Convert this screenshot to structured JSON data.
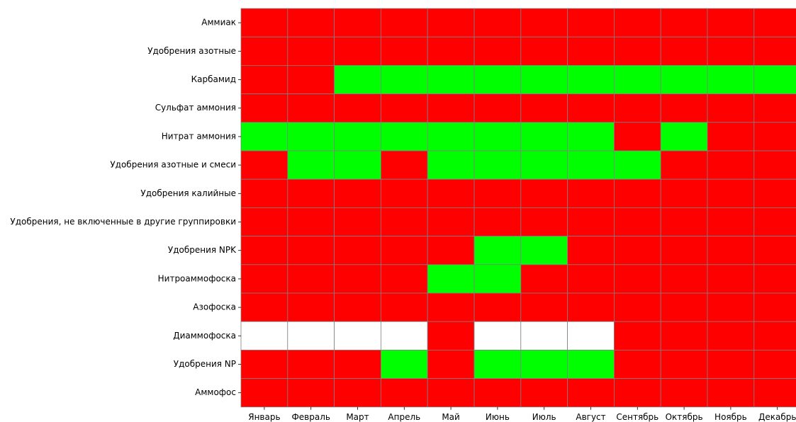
{
  "chart_data": {
    "type": "heatmap",
    "title": "",
    "xlabel": "",
    "ylabel": "",
    "columns": [
      "Январь",
      "Февраль",
      "Март",
      "Апрель",
      "Май",
      "Июнь",
      "Июль",
      "Август",
      "Сентябрь",
      "Октябрь",
      "Ноябрь",
      "Декабрь"
    ],
    "rows": [
      "Аммиак",
      "Удобрения азотные",
      "Карбамид",
      "Сульфат аммония",
      "Нитрат аммония",
      "Удобрения азотные и смеси",
      "Удобрения калийные",
      "Удобрения, не включенные в другие группировки",
      "Удобрения NPK",
      "Нитроаммофоска",
      "Азофоска",
      "Диаммофоска",
      "Удобрения NP",
      "Аммофос"
    ],
    "cells": [
      [
        "red",
        "red",
        "red",
        "red",
        "red",
        "red",
        "red",
        "red",
        "red",
        "red",
        "red",
        "red"
      ],
      [
        "red",
        "red",
        "red",
        "red",
        "red",
        "red",
        "red",
        "red",
        "red",
        "red",
        "red",
        "red"
      ],
      [
        "red",
        "red",
        "green",
        "green",
        "green",
        "green",
        "green",
        "green",
        "green",
        "green",
        "green",
        "green"
      ],
      [
        "red",
        "red",
        "red",
        "red",
        "red",
        "red",
        "red",
        "red",
        "red",
        "red",
        "red",
        "red"
      ],
      [
        "green",
        "green",
        "green",
        "green",
        "green",
        "green",
        "green",
        "green",
        "red",
        "green",
        "red",
        "red"
      ],
      [
        "red",
        "green",
        "green",
        "red",
        "green",
        "green",
        "green",
        "green",
        "green",
        "red",
        "red",
        "red"
      ],
      [
        "red",
        "red",
        "red",
        "red",
        "red",
        "red",
        "red",
        "red",
        "red",
        "red",
        "red",
        "red"
      ],
      [
        "red",
        "red",
        "red",
        "red",
        "red",
        "red",
        "red",
        "red",
        "red",
        "red",
        "red",
        "red"
      ],
      [
        "red",
        "red",
        "red",
        "red",
        "red",
        "green",
        "green",
        "red",
        "red",
        "red",
        "red",
        "red"
      ],
      [
        "red",
        "red",
        "red",
        "red",
        "green",
        "green",
        "red",
        "red",
        "red",
        "red",
        "red",
        "red"
      ],
      [
        "red",
        "red",
        "red",
        "red",
        "red",
        "red",
        "red",
        "red",
        "red",
        "red",
        "red",
        "red"
      ],
      [
        "white",
        "white",
        "white",
        "white",
        "red",
        "white",
        "white",
        "white",
        "red",
        "red",
        "red",
        "red"
      ],
      [
        "red",
        "red",
        "red",
        "green",
        "red",
        "green",
        "green",
        "green",
        "red",
        "red",
        "red",
        "red"
      ],
      [
        "red",
        "red",
        "red",
        "red",
        "red",
        "red",
        "red",
        "red",
        "red",
        "red",
        "red",
        "red"
      ]
    ],
    "palette": {
      "red": "#ff0000",
      "green": "#00ff00",
      "white": "#ffffff"
    },
    "grid_color": "#808080"
  }
}
